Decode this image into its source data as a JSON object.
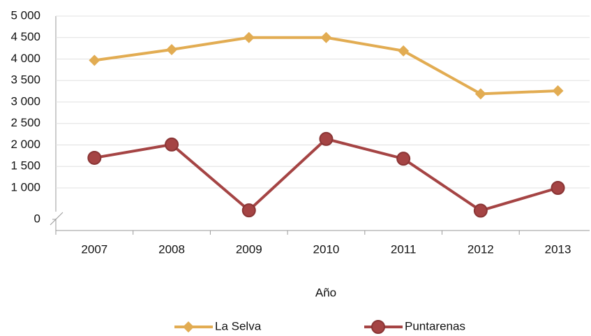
{
  "chart_data": {
    "type": "line",
    "x_label": "Año",
    "categories": [
      "2007",
      "2008",
      "2009",
      "2010",
      "2011",
      "2012",
      "2013"
    ],
    "series": [
      {
        "name": "La Selva",
        "color": "#e2ac52",
        "marker": "diamond",
        "values": [
          3970,
          4220,
          4500,
          4500,
          4190,
          3190,
          3260
        ]
      },
      {
        "name": "Puntarenas",
        "color": "#a54444",
        "marker": "circle",
        "values": [
          1700,
          2010,
          920,
          2140,
          1680,
          890,
          1000
        ]
      }
    ],
    "ylim": [
      0,
      5000
    ],
    "yticks": [
      {
        "value": 0,
        "label": "0"
      },
      {
        "value": 1000,
        "label": "1 000"
      },
      {
        "value": 1500,
        "label": "1 500"
      },
      {
        "value": 2000,
        "label": "2 000"
      },
      {
        "value": 2500,
        "label": "2 500"
      },
      {
        "value": 3000,
        "label": "3 000"
      },
      {
        "value": 3500,
        "label": "3 500"
      },
      {
        "value": 4000,
        "label": "4 000"
      },
      {
        "value": 4500,
        "label": "4 500"
      },
      {
        "value": 5000,
        "label": "5 000"
      }
    ],
    "axis_break": true,
    "grid": true,
    "legend": "bottom"
  }
}
